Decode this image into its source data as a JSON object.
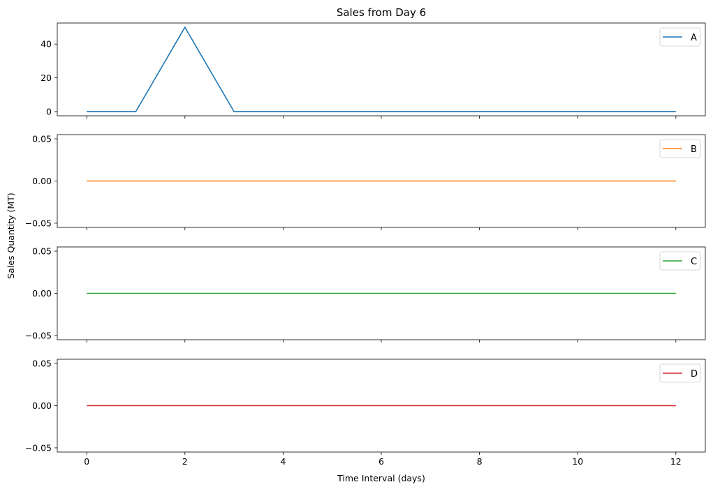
{
  "chart_data": {
    "type": "line",
    "title": "Sales from Day 6",
    "xlabel": "Time Interval (days)",
    "ylabel": "Sales Quantity (MT)",
    "x": [
      0,
      1,
      2,
      3,
      4,
      5,
      6,
      7,
      8,
      9,
      10,
      11,
      12
    ],
    "xticks": [
      "0",
      "2",
      "4",
      "6",
      "8",
      "10",
      "12"
    ],
    "xlim": [
      -0.6,
      12.6
    ],
    "grid": false,
    "legend_position": "top-right",
    "subplots": [
      {
        "series": {
          "name": "A",
          "color": "#1f77b4",
          "values": [
            0,
            0,
            50,
            0,
            0,
            0,
            0,
            0,
            0,
            0,
            0,
            0,
            0
          ]
        },
        "ylim": [
          -2.5,
          52.5
        ],
        "yticks": [
          0,
          20,
          40
        ],
        "ytick_labels": [
          "0",
          "20",
          "40"
        ]
      },
      {
        "series": {
          "name": "B",
          "color": "#ff7f0e",
          "values": [
            0,
            0,
            0,
            0,
            0,
            0,
            0,
            0,
            0,
            0,
            0,
            0,
            0
          ]
        },
        "ylim": [
          -0.055,
          0.055
        ],
        "yticks": [
          -0.05,
          0,
          0.05
        ],
        "ytick_labels": [
          "−0.05",
          "0.00",
          "0.05"
        ]
      },
      {
        "series": {
          "name": "C",
          "color": "#2ca02c",
          "values": [
            0,
            0,
            0,
            0,
            0,
            0,
            0,
            0,
            0,
            0,
            0,
            0,
            0
          ]
        },
        "ylim": [
          -0.055,
          0.055
        ],
        "yticks": [
          -0.05,
          0,
          0.05
        ],
        "ytick_labels": [
          "−0.05",
          "0.00",
          "0.05"
        ]
      },
      {
        "series": {
          "name": "D",
          "color": "#d62728",
          "values": [
            0,
            0,
            0,
            0,
            0,
            0,
            0,
            0,
            0,
            0,
            0,
            0,
            0
          ]
        },
        "ylim": [
          -0.055,
          0.055
        ],
        "yticks": [
          -0.05,
          0,
          0.05
        ],
        "ytick_labels": [
          "−0.05",
          "0.00",
          "0.05"
        ]
      }
    ]
  }
}
